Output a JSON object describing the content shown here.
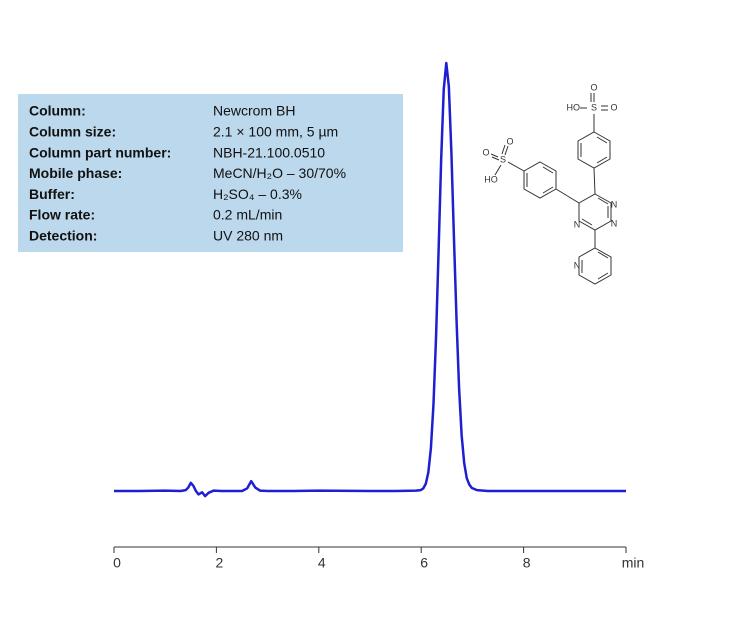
{
  "chart_data": {
    "type": "line",
    "info": [
      {
        "label": "Column:",
        "value": "Newcrom  BH"
      },
      {
        "label": "Column size:",
        "value": "2.1 × 100 mm, 5 µm"
      },
      {
        "label": "Column part number:",
        "value": "NBH-21.100.0510"
      },
      {
        "label": "Mobile phase:",
        "value": "MeCN/H₂O – 30/70%"
      },
      {
        "label": "Buffer:",
        "value": "H₂SO₄ – 0.3%"
      },
      {
        "label": "Flow rate:",
        "value": "0.2 mL/min"
      },
      {
        "label": "Detection:",
        "value": "UV 280 nm"
      }
    ],
    "structure_labels": [
      "O",
      "HO",
      "S",
      "O",
      "O",
      "S",
      "O",
      "HO",
      "N",
      "N",
      "N",
      "N"
    ],
    "x": [
      0,
      0.5,
      1,
      1.3,
      1.4,
      1.45,
      1.5,
      1.55,
      1.6,
      1.65,
      1.72,
      1.78,
      1.85,
      1.95,
      2.1,
      2.5,
      2.6,
      2.68,
      2.76,
      2.85,
      3,
      3.5,
      4,
      5,
      5.5,
      5.9,
      5.99,
      6.04,
      6.09,
      6.14,
      6.19,
      6.24,
      6.29,
      6.34,
      6.39,
      6.44,
      6.49,
      6.54,
      6.59,
      6.64,
      6.69,
      6.74,
      6.79,
      6.84,
      6.89,
      6.94,
      6.99,
      7.09,
      7.3,
      8,
      9,
      10
    ],
    "series": [
      {
        "color": "#1f1fd2",
        "values": [
          0,
          0,
          0.1,
          0,
          0.2,
          0.8,
          1.9,
          1.2,
          0,
          -0.8,
          -0.3,
          -1.2,
          -0.4,
          0.1,
          0,
          0,
          0.6,
          2.3,
          0.8,
          0.1,
          0,
          0,
          0.1,
          0,
          0,
          0.1,
          0.2,
          0.6,
          1.7,
          4.4,
          10.1,
          20.3,
          36.0,
          56.3,
          77.5,
          93.8,
          100,
          94.5,
          79,
          59,
          40,
          24,
          13,
          6.5,
          3,
          1.5,
          0.7,
          0.2,
          0,
          0,
          0,
          0
        ]
      }
    ],
    "xlim": [
      0,
      10
    ],
    "xticks": [
      0,
      2,
      4,
      6,
      8,
      {
        "value": 10,
        "label": "min"
      }
    ],
    "ylim": [
      -5,
      105
    ]
  }
}
